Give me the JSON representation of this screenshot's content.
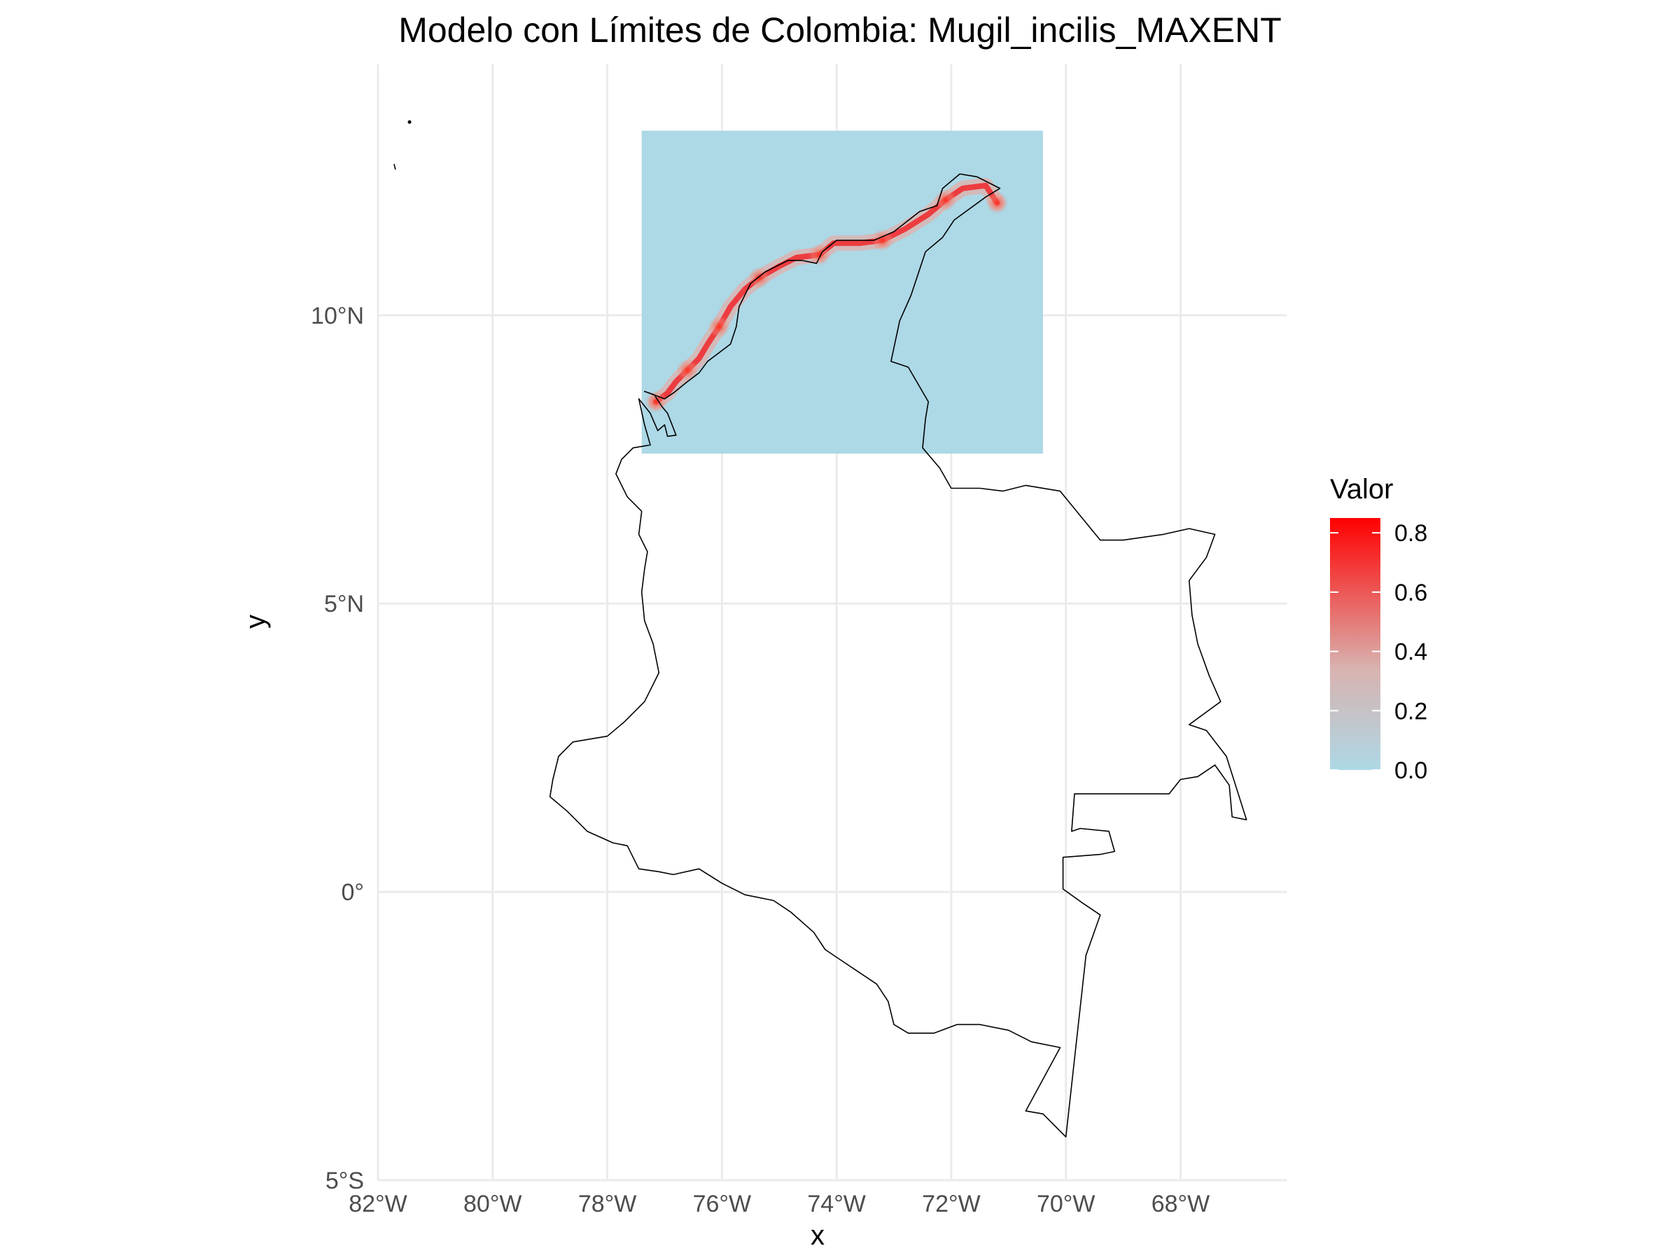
{
  "title": "Modelo con Límites de Colombia: Mugil_incilis_MAXENT",
  "axes": {
    "xlabel": "x",
    "ylabel": "y",
    "x_ticks": [
      {
        "value": -82,
        "label": "82°W"
      },
      {
        "value": -80,
        "label": "80°W"
      },
      {
        "value": -78,
        "label": "78°W"
      },
      {
        "value": -76,
        "label": "76°W"
      },
      {
        "value": -74,
        "label": "74°W"
      },
      {
        "value": -72,
        "label": "72°W"
      },
      {
        "value": -70,
        "label": "70°W"
      },
      {
        "value": -68,
        "label": "68°W"
      }
    ],
    "y_ticks": [
      {
        "value": 10,
        "label": "10°N"
      },
      {
        "value": 5,
        "label": "5°N"
      },
      {
        "value": 0,
        "label": "0°"
      },
      {
        "value": -5,
        "label": "5°S"
      }
    ],
    "xlim": [
      -82.0,
      -66.15
    ],
    "ylim": [
      -5.0,
      14.35
    ]
  },
  "legend": {
    "title": "Valor",
    "placement": "right",
    "low_color": "#add8e6",
    "high_color": "#ff0000",
    "range": [
      0,
      0.85
    ],
    "ticks": [
      {
        "value": 0.8,
        "label": "0.8"
      },
      {
        "value": 0.6,
        "label": "0.6"
      },
      {
        "value": 0.4,
        "label": "0.4"
      },
      {
        "value": 0.2,
        "label": "0.2"
      },
      {
        "value": 0.0,
        "label": "0.0"
      }
    ]
  },
  "raster_extent": {
    "xmin": -77.4,
    "xmax": -70.4,
    "ymin": 7.6,
    "ymax": 13.2
  },
  "raster_background_value": 0.0,
  "suitability_coast": {
    "value": 0.7,
    "points": [
      [
        -77.15,
        8.5
      ],
      [
        -76.95,
        8.65
      ],
      [
        -76.8,
        8.85
      ],
      [
        -76.6,
        9.05
      ],
      [
        -76.4,
        9.25
      ],
      [
        -76.25,
        9.5
      ],
      [
        -76.05,
        9.8
      ],
      [
        -75.85,
        10.15
      ],
      [
        -75.6,
        10.45
      ],
      [
        -75.35,
        10.65
      ],
      [
        -75.0,
        10.85
      ],
      [
        -74.7,
        11.0
      ],
      [
        -74.3,
        11.05
      ],
      [
        -74.05,
        11.25
      ],
      [
        -73.6,
        11.25
      ],
      [
        -73.2,
        11.3
      ],
      [
        -72.8,
        11.5
      ],
      [
        -72.4,
        11.75
      ],
      [
        -72.1,
        12.0
      ],
      [
        -71.8,
        12.2
      ],
      [
        -71.4,
        12.25
      ],
      [
        -71.2,
        11.95
      ]
    ]
  },
  "colombia_border": [
    [
      -81.45,
      13.35
    ],
    [
      -81.72,
      12.55
    ],
    [
      -77.35,
      8.68
    ],
    [
      -77.18,
      8.62
    ],
    [
      -77.05,
      8.42
    ],
    [
      -76.95,
      8.3
    ],
    [
      -76.85,
      8.05
    ],
    [
      -76.8,
      7.92
    ],
    [
      -76.95,
      7.9
    ],
    [
      -77.0,
      8.1
    ],
    [
      -77.12,
      8.0
    ],
    [
      -77.25,
      8.3
    ],
    [
      -77.45,
      8.55
    ],
    [
      -77.35,
      8.1
    ],
    [
      -77.25,
      7.75
    ],
    [
      -77.55,
      7.7
    ],
    [
      -77.75,
      7.5
    ],
    [
      -77.85,
      7.25
    ],
    [
      -77.65,
      6.85
    ],
    [
      -77.4,
      6.6
    ],
    [
      -77.45,
      6.2
    ],
    [
      -77.3,
      5.9
    ],
    [
      -77.35,
      5.6
    ],
    [
      -77.4,
      5.2
    ],
    [
      -77.35,
      4.7
    ],
    [
      -77.2,
      4.3
    ],
    [
      -77.1,
      3.8
    ],
    [
      -77.35,
      3.3
    ],
    [
      -77.7,
      2.95
    ],
    [
      -78.0,
      2.7
    ],
    [
      -78.3,
      2.65
    ],
    [
      -78.6,
      2.6
    ],
    [
      -78.85,
      2.35
    ],
    [
      -78.95,
      1.95
    ],
    [
      -79.0,
      1.65
    ],
    [
      -78.7,
      1.4
    ],
    [
      -78.35,
      1.05
    ],
    [
      -77.9,
      0.85
    ],
    [
      -77.65,
      0.8
    ],
    [
      -77.45,
      0.4
    ],
    [
      -77.1,
      0.35
    ],
    [
      -76.85,
      0.3
    ],
    [
      -76.4,
      0.4
    ],
    [
      -76.0,
      0.15
    ],
    [
      -75.6,
      -0.05
    ],
    [
      -75.1,
      -0.15
    ],
    [
      -74.8,
      -0.35
    ],
    [
      -74.4,
      -0.7
    ],
    [
      -74.2,
      -1.0
    ],
    [
      -73.9,
      -1.2
    ],
    [
      -73.6,
      -1.4
    ],
    [
      -73.3,
      -1.6
    ],
    [
      -73.1,
      -1.9
    ],
    [
      -73.0,
      -2.3
    ],
    [
      -72.75,
      -2.45
    ],
    [
      -72.3,
      -2.45
    ],
    [
      -71.9,
      -2.3
    ],
    [
      -71.5,
      -2.3
    ],
    [
      -71.0,
      -2.4
    ],
    [
      -70.6,
      -2.6
    ],
    [
      -70.1,
      -2.7
    ],
    [
      -70.7,
      -3.8
    ],
    [
      -70.4,
      -3.85
    ],
    [
      -70.0,
      -4.25
    ],
    [
      -69.65,
      -1.1
    ],
    [
      -69.4,
      -0.4
    ],
    [
      -69.7,
      -0.2
    ],
    [
      -70.05,
      0.05
    ],
    [
      -70.05,
      0.6
    ],
    [
      -69.4,
      0.65
    ],
    [
      -69.15,
      0.7
    ],
    [
      -69.25,
      1.05
    ],
    [
      -69.75,
      1.1
    ],
    [
      -69.9,
      1.05
    ],
    [
      -69.85,
      1.7
    ],
    [
      -68.2,
      1.7
    ],
    [
      -68.0,
      1.95
    ],
    [
      -67.7,
      2.0
    ],
    [
      -67.4,
      2.2
    ],
    [
      -67.15,
      1.85
    ],
    [
      -67.1,
      1.3
    ],
    [
      -66.85,
      1.25
    ],
    [
      -67.2,
      2.35
    ],
    [
      -67.55,
      2.8
    ],
    [
      -67.85,
      2.9
    ],
    [
      -67.3,
      3.3
    ],
    [
      -67.5,
      3.75
    ],
    [
      -67.7,
      4.3
    ],
    [
      -67.8,
      4.8
    ],
    [
      -67.85,
      5.4
    ],
    [
      -67.55,
      5.8
    ],
    [
      -67.4,
      6.2
    ],
    [
      -67.85,
      6.3
    ],
    [
      -68.3,
      6.2
    ],
    [
      -69.0,
      6.1
    ],
    [
      -69.4,
      6.1
    ],
    [
      -70.1,
      6.95
    ],
    [
      -70.7,
      7.05
    ],
    [
      -71.1,
      6.95
    ],
    [
      -71.5,
      7.0
    ],
    [
      -72.0,
      7.0
    ],
    [
      -72.2,
      7.35
    ],
    [
      -72.5,
      7.7
    ],
    [
      -72.45,
      8.2
    ],
    [
      -72.4,
      8.5
    ],
    [
      -72.75,
      9.1
    ],
    [
      -73.05,
      9.2
    ],
    [
      -72.9,
      9.9
    ],
    [
      -72.7,
      10.35
    ],
    [
      -72.45,
      11.1
    ],
    [
      -72.15,
      11.35
    ],
    [
      -71.95,
      11.65
    ],
    [
      -71.4,
      12.05
    ],
    [
      -71.15,
      12.2
    ],
    [
      -71.55,
      12.4
    ],
    [
      -71.85,
      12.45
    ],
    [
      -72.15,
      12.2
    ],
    [
      -72.25,
      11.9
    ],
    [
      -72.55,
      11.8
    ],
    [
      -73.0,
      11.45
    ],
    [
      -73.35,
      11.3
    ],
    [
      -74.0,
      11.3
    ],
    [
      -74.25,
      11.1
    ],
    [
      -74.35,
      10.9
    ],
    [
      -74.6,
      10.95
    ],
    [
      -74.85,
      10.95
    ],
    [
      -75.25,
      10.75
    ],
    [
      -75.5,
      10.55
    ],
    [
      -75.7,
      10.15
    ],
    [
      -75.75,
      9.8
    ],
    [
      -75.85,
      9.5
    ],
    [
      -76.05,
      9.35
    ],
    [
      -76.25,
      9.2
    ],
    [
      -76.4,
      9.0
    ],
    [
      -76.6,
      8.85
    ],
    [
      -76.85,
      8.65
    ],
    [
      -77.0,
      8.55
    ],
    [
      -77.35,
      8.68
    ]
  ]
}
